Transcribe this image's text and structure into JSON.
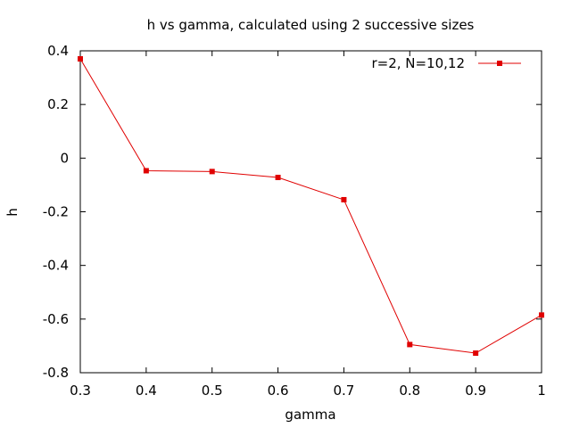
{
  "chart_data": {
    "type": "line",
    "title": "h vs gamma, calculated using 2 successive sizes",
    "xlabel": "gamma",
    "ylabel": "h",
    "xlim": [
      0.3,
      1.0
    ],
    "ylim": [
      -0.8,
      0.4
    ],
    "xticks": [
      "0.3",
      "0.4",
      "0.5",
      "0.6",
      "0.7",
      "0.8",
      "0.9",
      "1"
    ],
    "yticks": [
      "0.4",
      "0.2",
      "0",
      "-0.2",
      "-0.4",
      "-0.6",
      "-0.8"
    ],
    "grid": false,
    "legend_position": "top-right",
    "series": [
      {
        "name": "r=2, N=10,12",
        "color": "#e00000",
        "marker": "square",
        "x": [
          0.3,
          0.4,
          0.5,
          0.6,
          0.7,
          0.8,
          0.9,
          1.0
        ],
        "y": [
          0.37,
          -0.047,
          -0.05,
          -0.072,
          -0.155,
          -0.695,
          -0.727,
          -0.585
        ]
      }
    ]
  }
}
